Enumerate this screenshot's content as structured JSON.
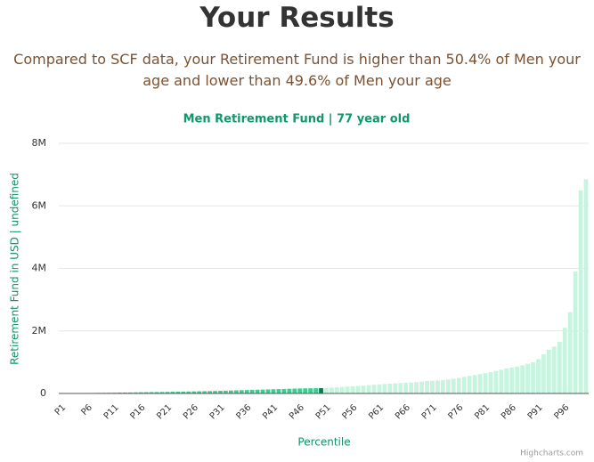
{
  "page": {
    "title": "Your Results",
    "subtitle": "Compared to SCF data, your Retirement Fund is higher than 50.4% of Men your age and lower than 49.6% of Men your age",
    "credits": "Highcharts.com"
  },
  "chart_data": {
    "type": "bar",
    "title": "Men Retirement Fund | 77 year old",
    "y_label": "Retirement Fund in USD | undefined",
    "x_label": "Percentile",
    "categories": [
      "P1",
      null,
      null,
      null,
      null,
      "P6",
      null,
      null,
      null,
      null,
      "P11",
      null,
      null,
      null,
      null,
      "P16",
      null,
      null,
      null,
      null,
      "P21",
      null,
      null,
      null,
      null,
      "P26",
      null,
      null,
      null,
      null,
      "P31",
      null,
      null,
      null,
      null,
      "P36",
      null,
      null,
      null,
      null,
      "P41",
      null,
      null,
      null,
      null,
      "P46",
      null,
      null,
      null,
      null,
      "P51",
      null,
      null,
      null,
      null,
      "P56",
      null,
      null,
      null,
      null,
      "P61",
      null,
      null,
      null,
      null,
      "P66",
      null,
      null,
      null,
      null,
      "P71",
      null,
      null,
      null,
      null,
      "P76",
      null,
      null,
      null,
      null,
      "P81",
      null,
      null,
      null,
      null,
      "P86",
      null,
      null,
      null,
      null,
      "P91",
      null,
      null,
      null,
      null,
      "P96",
      null,
      null,
      null,
      null
    ],
    "values": [
      0,
      2000,
      5000,
      8000,
      10000,
      12000,
      15000,
      18000,
      20000,
      22000,
      25000,
      28000,
      30000,
      32000,
      35000,
      38000,
      40000,
      42000,
      45000,
      48000,
      50000,
      55000,
      58000,
      60000,
      63000,
      66000,
      70000,
      73000,
      76000,
      80000,
      85000,
      90000,
      95000,
      100000,
      105000,
      110000,
      115000,
      120000,
      125000,
      130000,
      135000,
      140000,
      145000,
      150000,
      155000,
      160000,
      163000,
      166000,
      168000,
      170000,
      180000,
      190000,
      200000,
      210000,
      220000,
      230000,
      240000,
      250000,
      265000,
      280000,
      290000,
      300000,
      310000,
      320000,
      330000,
      340000,
      350000,
      365000,
      380000,
      400000,
      410000,
      420000,
      430000,
      450000,
      470000,
      500000,
      530000,
      560000,
      590000,
      620000,
      650000,
      680000,
      720000,
      760000,
      800000,
      830000,
      860000,
      900000,
      950000,
      1000000,
      1100000,
      1250000,
      1400000,
      1500000,
      1650000,
      2100000,
      2600000,
      3900000,
      6500000,
      6850000
    ],
    "colors": [
      "#3dcc91",
      "#3dcc91",
      "#3dcc91",
      "#3dcc91",
      "#3dcc91",
      "#3dcc91",
      "#3dcc91",
      "#3dcc91",
      "#3dcc91",
      "#3dcc91",
      "#3dcc91",
      "#3dcc91",
      "#3dcc91",
      "#3dcc91",
      "#3dcc91",
      "#3dcc91",
      "#3dcc91",
      "#3dcc91",
      "#3dcc91",
      "#3dcc91",
      "#3dcc91",
      "#3dcc91",
      "#3dcc91",
      "#3dcc91",
      "#3dcc91",
      "#3dcc91",
      "#3dcc91",
      "#3dcc91",
      "#3dcc91",
      "#3dcc91",
      "#3dcc91",
      "#3dcc91",
      "#3dcc91",
      "#3dcc91",
      "#3dcc91",
      "#3dcc91",
      "#3dcc91",
      "#3dcc91",
      "#3dcc91",
      "#3dcc91",
      "#3dcc91",
      "#3dcc91",
      "#3dcc91",
      "#3dcc91",
      "#3dcc91",
      "#3dcc91",
      "#3dcc91",
      "#3dcc91",
      "#3dcc91",
      "#0e7a55",
      "#c6f4df",
      "#c6f4df",
      "#c6f4df",
      "#c6f4df",
      "#c6f4df",
      "#c6f4df",
      "#c6f4df",
      "#c6f4df",
      "#c6f4df",
      "#c6f4df",
      "#c6f4df",
      "#c6f4df",
      "#c6f4df",
      "#c6f4df",
      "#c6f4df",
      "#c6f4df",
      "#c6f4df",
      "#c6f4df",
      "#c6f4df",
      "#c6f4df",
      "#c6f4df",
      "#c6f4df",
      "#c6f4df",
      "#c6f4df",
      "#c6f4df",
      "#c6f4df",
      "#c6f4df",
      "#c6f4df",
      "#c6f4df",
      "#c6f4df",
      "#c6f4df",
      "#c6f4df",
      "#c6f4df",
      "#c6f4df",
      "#c6f4df",
      "#c6f4df",
      "#c6f4df",
      "#c6f4df",
      "#c6f4df",
      "#c6f4df",
      "#c6f4df",
      "#c6f4df",
      "#c6f4df",
      "#c6f4df",
      "#c6f4df",
      "#c6f4df",
      "#c6f4df",
      "#c6f4df",
      "#c6f4df",
      "#c6f4df"
    ],
    "ylim": [
      0,
      8000000
    ],
    "yticks": [
      0,
      {
        "value": 2000000,
        "label": "2M"
      },
      {
        "value": 4000000,
        "label": "4M"
      },
      {
        "value": 6000000,
        "label": "6M"
      },
      {
        "value": 8000000,
        "label": "8M"
      }
    ],
    "grid": true
  }
}
